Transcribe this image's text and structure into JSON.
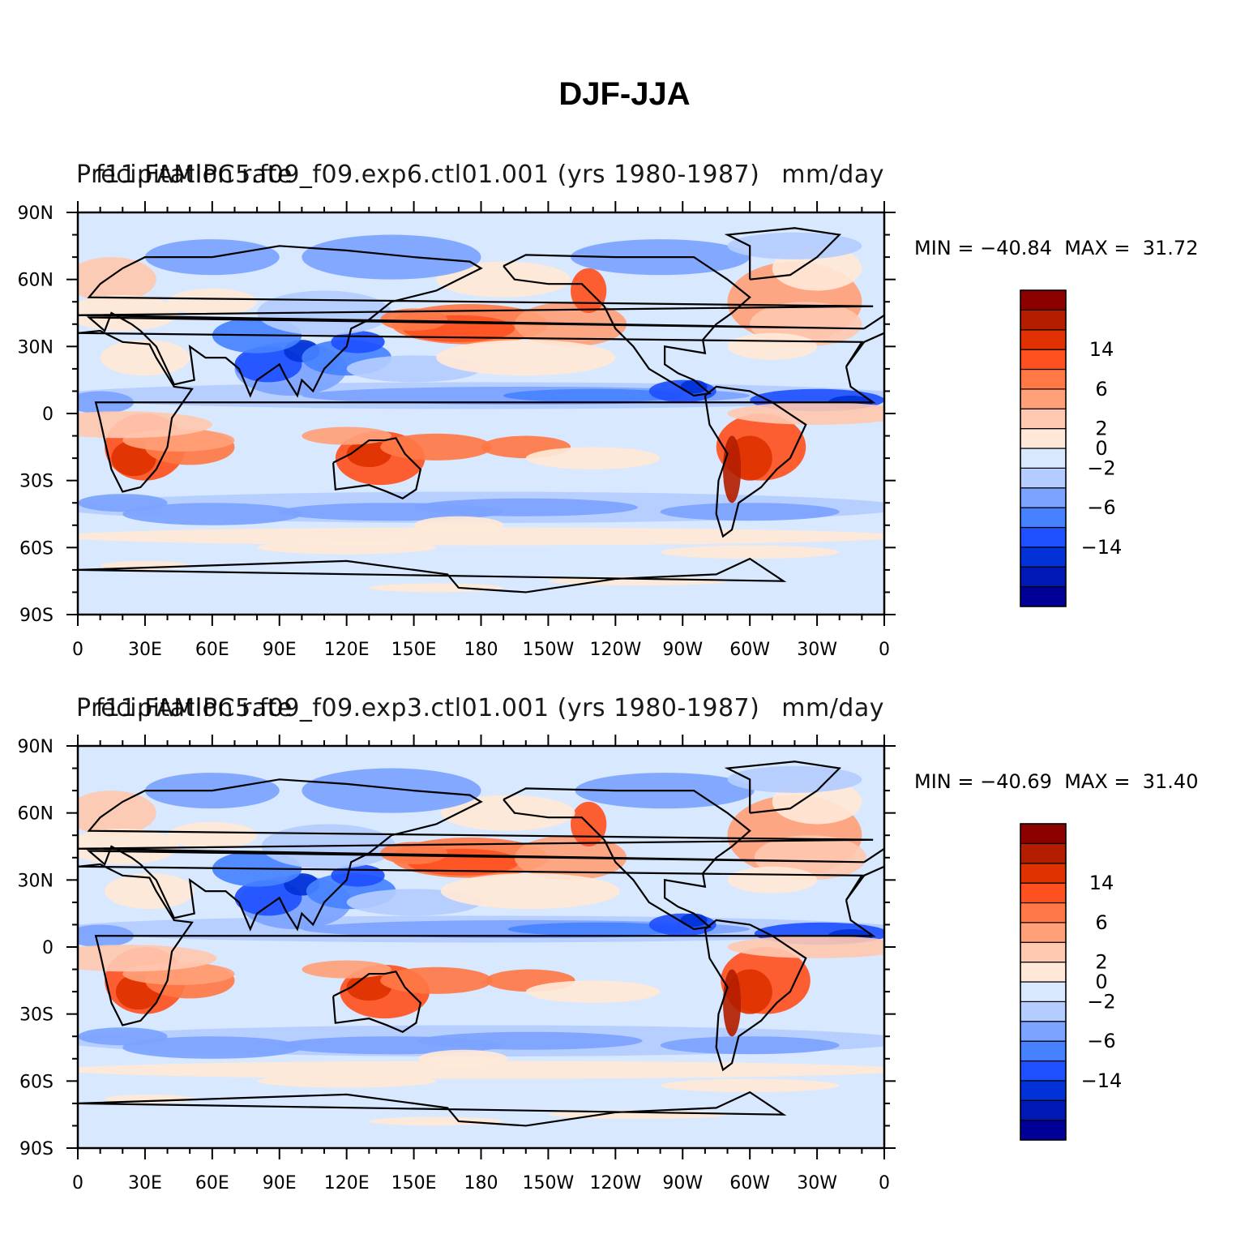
{
  "title": "DJF-JJA",
  "colors": {
    "scale": [
      "#000096",
      "#0019b4",
      "#0032d7",
      "#1e50ff",
      "#4682ff",
      "#7ba3ff",
      "#b4ccff",
      "#d7e8ff",
      "#ffe8d7",
      "#ffc8b0",
      "#ffa078",
      "#ff7846",
      "#ff5020",
      "#e03200",
      "#b41e00",
      "#8c0000"
    ],
    "land_outline": "#000000"
  },
  "panels": [
    {
      "left_label": "Precipitation rate",
      "center_label": "f11.FAMIPC5.f09_f09.exp6.ctl01.001 (yrs 1980-1987)",
      "right_label": "mm/day",
      "min_label": "MIN = −40.84",
      "max_label": "MAX =  31.72"
    },
    {
      "left_label": "Precipitation rate",
      "center_label": "f11.FAMIPC5.f09_f09.exp3.ctl01.001 (yrs 1980-1987)",
      "right_label": "mm/day",
      "min_label": "MIN = −40.69",
      "max_label": "MAX =  31.40"
    }
  ],
  "lat_labels": [
    "90N",
    "60N",
    "30N",
    "0",
    "30S",
    "60S",
    "90S"
  ],
  "lon_labels": [
    "0",
    "30E",
    "60E",
    "90E",
    "120E",
    "150E",
    "180",
    "150W",
    "120W",
    "90W",
    "60W",
    "30W",
    "0"
  ],
  "colorbar_labels": [
    "14",
    "6",
    "2",
    "0",
    "−2",
    "−6",
    "−14"
  ]
}
